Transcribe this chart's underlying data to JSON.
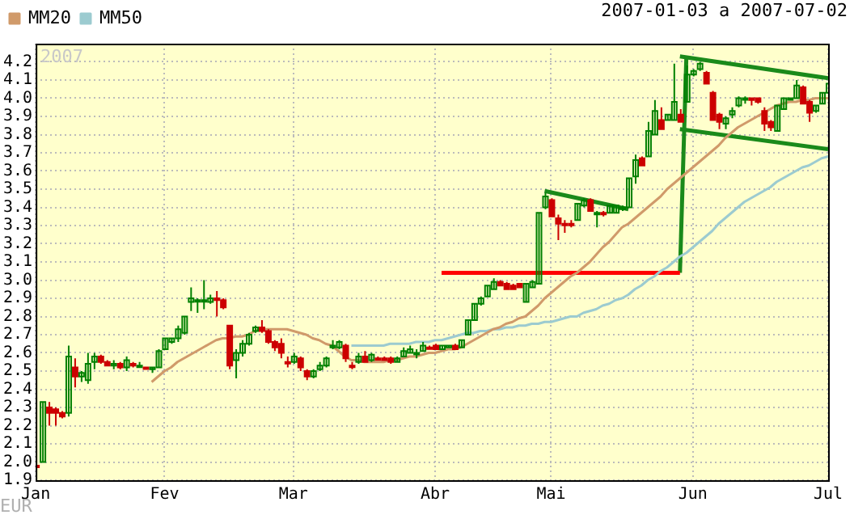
{
  "chart_data": {
    "type": "candlestick",
    "subtitle": "2007-01-03 a 2007-07-02",
    "ylabel": "EUR",
    "annotations": [
      "2007"
    ],
    "categories": [
      "Jan",
      null,
      null,
      null,
      null,
      null,
      null,
      null,
      null,
      null,
      null,
      null,
      null,
      null,
      null,
      null,
      null,
      null,
      null,
      null,
      "Fev",
      null,
      null,
      null,
      null,
      null,
      null,
      null,
      null,
      null,
      null,
      null,
      null,
      null,
      null,
      null,
      null,
      null,
      null,
      null,
      "Mar",
      null,
      null,
      null,
      null,
      null,
      null,
      null,
      null,
      null,
      null,
      null,
      null,
      null,
      null,
      null,
      null,
      null,
      null,
      null,
      null,
      null,
      "Abr",
      null,
      null,
      null,
      null,
      null,
      null,
      null,
      null,
      null,
      null,
      null,
      null,
      null,
      null,
      null,
      null,
      null,
      "Mai",
      null,
      null,
      null,
      null,
      null,
      null,
      null,
      null,
      null,
      null,
      null,
      null,
      null,
      null,
      null,
      null,
      null,
      null,
      null,
      null,
      null,
      "Jun",
      null,
      null,
      null,
      null,
      null,
      null,
      null,
      null,
      null,
      null,
      null,
      null,
      null,
      null,
      null,
      null,
      null,
      null,
      null,
      null,
      "Jul"
    ],
    "ohlc": [
      [
        1.98,
        1.98,
        1.98,
        1.98
      ],
      [
        2.0,
        2.33,
        2.0,
        2.33
      ],
      [
        2.3,
        2.33,
        2.2,
        2.27
      ],
      [
        2.29,
        2.3,
        2.2,
        2.27
      ],
      [
        2.27,
        2.28,
        2.24,
        2.25
      ],
      [
        2.27,
        2.64,
        2.25,
        2.58
      ],
      [
        2.52,
        2.57,
        2.41,
        2.47
      ],
      [
        2.47,
        2.5,
        2.44,
        2.49
      ],
      [
        2.45,
        2.6,
        2.43,
        2.54
      ],
      [
        2.55,
        2.6,
        2.51,
        2.58
      ],
      [
        2.58,
        2.59,
        2.54,
        2.55
      ],
      [
        2.55,
        2.56,
        2.53,
        2.53
      ],
      [
        2.53,
        2.56,
        2.51,
        2.54
      ],
      [
        2.54,
        2.55,
        2.51,
        2.52
      ],
      [
        2.52,
        2.58,
        2.5,
        2.56
      ],
      [
        2.54,
        2.55,
        2.52,
        2.53
      ],
      [
        2.53,
        2.55,
        2.52,
        2.53
      ],
      [
        2.52,
        2.52,
        2.52,
        2.52
      ],
      [
        2.51,
        2.52,
        2.49,
        2.52
      ],
      [
        2.52,
        2.62,
        2.52,
        2.61
      ],
      [
        2.62,
        2.68,
        2.62,
        2.68
      ],
      [
        2.66,
        2.68,
        2.65,
        2.68
      ],
      [
        2.68,
        2.75,
        2.66,
        2.73
      ],
      [
        2.71,
        2.8,
        2.7,
        2.8
      ],
      [
        2.88,
        2.96,
        2.83,
        2.9
      ],
      [
        2.89,
        2.9,
        2.82,
        2.89
      ],
      [
        2.89,
        3.0,
        2.84,
        2.89
      ],
      [
        2.88,
        2.92,
        2.87,
        2.9
      ],
      [
        2.9,
        2.94,
        2.8,
        2.89
      ],
      [
        2.89,
        2.9,
        2.84,
        2.85
      ],
      [
        2.75,
        2.75,
        2.51,
        2.53
      ],
      [
        2.56,
        2.62,
        2.46,
        2.6
      ],
      [
        2.6,
        2.67,
        2.58,
        2.65
      ],
      [
        2.65,
        2.71,
        2.64,
        2.7
      ],
      [
        2.72,
        2.75,
        2.71,
        2.74
      ],
      [
        2.74,
        2.78,
        2.71,
        2.72
      ],
      [
        2.72,
        2.73,
        2.65,
        2.66
      ],
      [
        2.66,
        2.67,
        2.61,
        2.63
      ],
      [
        2.65,
        2.68,
        2.57,
        2.6
      ],
      [
        2.55,
        2.58,
        2.52,
        2.55
      ],
      [
        2.55,
        2.6,
        2.54,
        2.58
      ],
      [
        2.57,
        2.58,
        2.5,
        2.52
      ],
      [
        2.5,
        2.51,
        2.45,
        2.47
      ],
      [
        2.47,
        2.51,
        2.46,
        2.5
      ],
      [
        2.51,
        2.55,
        2.5,
        2.53
      ],
      [
        2.53,
        2.58,
        2.52,
        2.57
      ],
      [
        2.63,
        2.67,
        2.62,
        2.64
      ],
      [
        2.63,
        2.67,
        2.62,
        2.66
      ],
      [
        2.64,
        2.65,
        2.55,
        2.57
      ],
      [
        2.53,
        2.55,
        2.51,
        2.53
      ],
      [
        2.55,
        2.6,
        2.54,
        2.58
      ],
      [
        2.58,
        2.61,
        2.55,
        2.55
      ],
      [
        2.56,
        2.6,
        2.55,
        2.59
      ],
      [
        2.57,
        2.58,
        2.56,
        2.57
      ],
      [
        2.57,
        2.58,
        2.56,
        2.56
      ],
      [
        2.57,
        2.58,
        2.54,
        2.55
      ],
      [
        2.55,
        2.58,
        2.55,
        2.57
      ],
      [
        2.58,
        2.63,
        2.58,
        2.61
      ],
      [
        2.6,
        2.64,
        2.6,
        2.62
      ],
      [
        2.6,
        2.62,
        2.57,
        2.6
      ],
      [
        2.61,
        2.66,
        2.61,
        2.64
      ],
      [
        2.63,
        2.64,
        2.62,
        2.63
      ],
      [
        2.64,
        2.65,
        2.62,
        2.62
      ],
      [
        2.62,
        2.64,
        2.62,
        2.64
      ],
      [
        2.63,
        2.64,
        2.63,
        2.64
      ],
      [
        2.64,
        2.65,
        2.62,
        2.62
      ],
      [
        2.63,
        2.67,
        2.63,
        2.67
      ],
      [
        2.7,
        2.78,
        2.7,
        2.78
      ],
      [
        2.78,
        2.87,
        2.78,
        2.87
      ],
      [
        2.87,
        2.91,
        2.86,
        2.9
      ],
      [
        2.91,
        2.97,
        2.91,
        2.97
      ],
      [
        2.95,
        3.01,
        2.95,
        2.99
      ],
      [
        2.99,
        3.0,
        2.97,
        2.97
      ],
      [
        2.98,
        2.99,
        2.95,
        2.95
      ],
      [
        2.97,
        2.98,
        2.95,
        2.95
      ],
      [
        2.98,
        2.98,
        2.96,
        2.96
      ],
      [
        2.88,
        2.98,
        2.88,
        2.98
      ],
      [
        2.96,
        3.0,
        2.96,
        2.99
      ],
      [
        2.98,
        3.37,
        2.98,
        3.37
      ],
      [
        3.4,
        3.48,
        3.39,
        3.46
      ],
      [
        3.44,
        3.45,
        3.35,
        3.35
      ],
      [
        3.34,
        3.36,
        3.22,
        3.31
      ],
      [
        3.31,
        3.33,
        3.26,
        3.31
      ],
      [
        3.31,
        3.33,
        3.29,
        3.31
      ],
      [
        3.33,
        3.42,
        3.33,
        3.42
      ],
      [
        3.41,
        3.45,
        3.4,
        3.44
      ],
      [
        3.44,
        3.45,
        3.38,
        3.38
      ],
      [
        3.37,
        3.38,
        3.29,
        3.37
      ],
      [
        3.37,
        3.38,
        3.35,
        3.37
      ],
      [
        3.37,
        3.41,
        3.37,
        3.41
      ],
      [
        3.37,
        3.41,
        3.37,
        3.41
      ],
      [
        3.39,
        3.41,
        3.38,
        3.4
      ],
      [
        3.4,
        3.56,
        3.4,
        3.56
      ],
      [
        3.57,
        3.69,
        3.53,
        3.66
      ],
      [
        3.67,
        3.68,
        3.63,
        3.63
      ],
      [
        3.68,
        3.87,
        3.68,
        3.82
      ],
      [
        3.8,
        3.99,
        3.8,
        3.93
      ],
      [
        3.88,
        3.95,
        3.83,
        3.83
      ],
      [
        3.88,
        3.91,
        3.88,
        3.91
      ],
      [
        3.88,
        4.19,
        3.88,
        3.98
      ],
      [
        3.91,
        3.94,
        3.87,
        3.87
      ],
      [
        3.98,
        4.18,
        3.98,
        4.13
      ],
      [
        4.13,
        4.16,
        4.12,
        4.15
      ],
      [
        4.16,
        4.2,
        4.15,
        4.19
      ],
      [
        4.14,
        4.15,
        4.08,
        4.08
      ],
      [
        4.03,
        4.04,
        3.88,
        3.88
      ],
      [
        3.91,
        3.92,
        3.83,
        3.87
      ],
      [
        3.86,
        3.9,
        3.83,
        3.89
      ],
      [
        3.91,
        3.95,
        3.89,
        3.93
      ],
      [
        3.96,
        4.01,
        3.95,
        4.0
      ],
      [
        4.0,
        4.01,
        3.97,
        4.0
      ],
      [
        4.0,
        4.0,
        3.96,
        3.99
      ],
      [
        4.0,
        4.0,
        3.97,
        3.98
      ],
      [
        3.93,
        3.95,
        3.82,
        3.86
      ],
      [
        3.87,
        3.88,
        3.82,
        3.84
      ],
      [
        3.82,
        3.96,
        3.82,
        3.96
      ],
      [
        3.94,
        4.0,
        3.94,
        4.0
      ],
      [
        4.0,
        4.0,
        3.99,
        4.0
      ],
      [
        4.0,
        4.1,
        4.0,
        4.07
      ],
      [
        4.06,
        4.07,
        3.97,
        3.97
      ],
      [
        3.98,
        3.99,
        3.87,
        3.92
      ],
      [
        3.93,
        3.96,
        3.92,
        3.96
      ],
      [
        3.97,
        4.03,
        3.97,
        4.03
      ],
      [
        4.03,
        4.1,
        4.02,
        4.08
      ]
    ],
    "colors": [
      "#cc0000",
      "#008000",
      "#cc0000",
      "#cc0000",
      "#cc0000",
      "#008000",
      "#cc0000",
      "#008000",
      "#008000",
      "#008000",
      "#cc0000",
      "#cc0000",
      "#008000",
      "#cc0000",
      "#008000",
      "#cc0000",
      "#008000",
      "#cc0000",
      "#008000",
      "#008000",
      "#008000",
      "#008000",
      "#008000",
      "#008000",
      "#008000",
      "#008000",
      "#008000",
      "#008000",
      "#cc0000",
      "#cc0000",
      "#cc0000",
      "#008000",
      "#008000",
      "#008000",
      "#008000",
      "#cc0000",
      "#cc0000",
      "#cc0000",
      "#cc0000",
      "#cc0000",
      "#008000",
      "#cc0000",
      "#cc0000",
      "#008000",
      "#008000",
      "#008000",
      "#008000",
      "#008000",
      "#cc0000",
      "#cc0000",
      "#008000",
      "#cc0000",
      "#008000",
      "#cc0000",
      "#cc0000",
      "#cc0000",
      "#008000",
      "#008000",
      "#008000",
      "#008000",
      "#008000",
      "#cc0000",
      "#cc0000",
      "#008000",
      "#008000",
      "#cc0000",
      "#008000",
      "#008000",
      "#008000",
      "#008000",
      "#008000",
      "#008000",
      "#cc0000",
      "#cc0000",
      "#cc0000",
      "#cc0000",
      "#008000",
      "#008000",
      "#008000",
      "#008000",
      "#cc0000",
      "#cc0000",
      "#cc0000",
      "#cc0000",
      "#008000",
      "#008000",
      "#cc0000",
      "#008000",
      "#cc0000",
      "#008000",
      "#008000",
      "#008000",
      "#008000",
      "#008000",
      "#cc0000",
      "#008000",
      "#008000",
      "#cc0000",
      "#008000",
      "#008000",
      "#cc0000",
      "#008000",
      "#008000",
      "#008000",
      "#cc0000",
      "#cc0000",
      "#cc0000",
      "#008000",
      "#008000",
      "#008000",
      "#008000",
      "#cc0000",
      "#cc0000",
      "#cc0000",
      "#cc0000",
      "#008000",
      "#008000",
      "#008000",
      "#008000",
      "#cc0000",
      "#cc0000",
      "#008000",
      "#008000",
      "#008000"
    ],
    "series": [
      {
        "type": "line",
        "name": "MM20",
        "color": "#d09a6a",
        "values": [
          null,
          null,
          null,
          null,
          null,
          null,
          null,
          null,
          null,
          null,
          null,
          null,
          null,
          null,
          null,
          null,
          null,
          null,
          2.44,
          2.47,
          2.5,
          2.52,
          2.55,
          2.57,
          2.59,
          2.61,
          2.63,
          2.65,
          2.67,
          2.68,
          2.68,
          2.69,
          2.69,
          2.7,
          2.72,
          2.73,
          2.73,
          2.73,
          2.73,
          2.73,
          2.72,
          2.71,
          2.7,
          2.68,
          2.67,
          2.65,
          2.64,
          2.61,
          2.58,
          2.56,
          2.56,
          2.55,
          2.55,
          2.55,
          2.55,
          2.56,
          2.56,
          2.57,
          2.58,
          2.58,
          2.59,
          2.6,
          2.6,
          2.61,
          2.62,
          2.62,
          2.63,
          2.65,
          2.67,
          2.69,
          2.71,
          2.73,
          2.74,
          2.76,
          2.77,
          2.79,
          2.8,
          2.83,
          2.86,
          2.9,
          2.93,
          2.96,
          2.99,
          3.02,
          3.04,
          3.07,
          3.1,
          3.14,
          3.18,
          3.21,
          3.25,
          3.29,
          3.31,
          3.34,
          3.37,
          3.4,
          3.43,
          3.46,
          3.5,
          3.53,
          3.56,
          3.59,
          3.62,
          3.65,
          3.68,
          3.71,
          3.74,
          3.78,
          3.81,
          3.84,
          3.86,
          3.88,
          3.9,
          3.92,
          3.94,
          3.96,
          3.97,
          3.98,
          3.98,
          3.99,
          3.99,
          4.0,
          4.0,
          4.0
        ]
      },
      {
        "type": "line",
        "name": "MM50",
        "color": "#9ccbd0",
        "values": [
          null,
          null,
          null,
          null,
          null,
          null,
          null,
          null,
          null,
          null,
          null,
          null,
          null,
          null,
          null,
          null,
          null,
          null,
          null,
          null,
          null,
          null,
          null,
          null,
          null,
          null,
          null,
          null,
          null,
          null,
          null,
          null,
          null,
          null,
          null,
          null,
          null,
          null,
          null,
          null,
          null,
          null,
          null,
          null,
          null,
          null,
          null,
          null,
          null,
          2.64,
          2.64,
          2.64,
          2.64,
          2.64,
          2.64,
          2.65,
          2.65,
          2.65,
          2.65,
          2.66,
          2.66,
          2.66,
          2.67,
          2.67,
          2.68,
          2.69,
          2.7,
          2.71,
          2.71,
          2.72,
          2.72,
          2.73,
          2.73,
          2.74,
          2.74,
          2.75,
          2.75,
          2.76,
          2.76,
          2.77,
          2.77,
          2.78,
          2.79,
          2.8,
          2.8,
          2.82,
          2.83,
          2.84,
          2.86,
          2.87,
          2.89,
          2.9,
          2.92,
          2.95,
          2.97,
          3.0,
          3.02,
          3.05,
          3.07,
          3.1,
          3.13,
          3.15,
          3.18,
          3.21,
          3.24,
          3.27,
          3.31,
          3.34,
          3.37,
          3.4,
          3.43,
          3.45,
          3.47,
          3.49,
          3.51,
          3.54,
          3.56,
          3.58,
          3.6,
          3.62,
          3.63,
          3.65,
          3.67,
          3.68
        ]
      },
      {
        "type": "line",
        "color": "#ff0000",
        "values": [
          null,
          null,
          null,
          null,
          null,
          null,
          null,
          null,
          null,
          null,
          null,
          null,
          null,
          null,
          null,
          null,
          null,
          null,
          null,
          null,
          null,
          null,
          null,
          null,
          null,
          null,
          null,
          null,
          null,
          null,
          null,
          null,
          null,
          null,
          null,
          null,
          null,
          null,
          null,
          null,
          null,
          null,
          null,
          null,
          null,
          null,
          null,
          null,
          null,
          null,
          null,
          null,
          null,
          null,
          null,
          null,
          null,
          null,
          null,
          null,
          null,
          null,
          null,
          3.04,
          null,
          null,
          null,
          null,
          null,
          null,
          null,
          null,
          null,
          null,
          null,
          null,
          null,
          null,
          null,
          null,
          null,
          null,
          null,
          null,
          null,
          null,
          null,
          null,
          null,
          null,
          null,
          null,
          null,
          null,
          null,
          null,
          null,
          null,
          null,
          null,
          3.04,
          null,
          null,
          null,
          null,
          null,
          null,
          null,
          null,
          null,
          null,
          null,
          null,
          null,
          null,
          null,
          null,
          null,
          null,
          null,
          null,
          null,
          null,
          null
        ]
      },
      {
        "type": "line",
        "color": "#1a8a1a",
        "values": [
          null,
          null,
          null,
          null,
          null,
          null,
          null,
          null,
          null,
          null,
          null,
          null,
          null,
          null,
          null,
          null,
          null,
          null,
          null,
          null,
          null,
          null,
          null,
          null,
          null,
          null,
          null,
          null,
          null,
          null,
          null,
          null,
          null,
          null,
          null,
          null,
          null,
          null,
          null,
          null,
          null,
          null,
          null,
          null,
          null,
          null,
          null,
          null,
          null,
          null,
          null,
          null,
          null,
          null,
          null,
          null,
          null,
          null,
          null,
          null,
          null,
          null,
          null,
          null,
          null,
          null,
          null,
          null,
          null,
          null,
          null,
          null,
          null,
          null,
          null,
          null,
          null,
          null,
          null,
          null,
          null,
          null,
          null,
          null,
          null,
          null,
          null,
          null,
          null,
          null,
          null,
          null,
          null,
          null,
          null,
          null,
          null,
          null,
          null,
          null,
          3.04,
          4.23,
          null,
          null,
          null,
          null,
          null,
          null,
          null,
          null,
          null,
          null,
          null,
          null,
          null,
          null,
          null,
          null,
          null,
          null,
          null,
          null,
          null,
          null
        ]
      },
      {
        "type": "line",
        "color": "#1a8a1a",
        "values": [
          null,
          null,
          null,
          null,
          null,
          null,
          null,
          null,
          null,
          null,
          null,
          null,
          null,
          null,
          null,
          null,
          null,
          null,
          null,
          null,
          null,
          null,
          null,
          null,
          null,
          null,
          null,
          null,
          null,
          null,
          null,
          null,
          null,
          null,
          null,
          null,
          null,
          null,
          null,
          null,
          null,
          null,
          null,
          null,
          null,
          null,
          null,
          null,
          null,
          null,
          null,
          null,
          null,
          null,
          null,
          null,
          null,
          null,
          null,
          null,
          null,
          null,
          null,
          null,
          null,
          null,
          null,
          null,
          null,
          null,
          null,
          null,
          null,
          null,
          null,
          null,
          null,
          null,
          null,
          null,
          null,
          null,
          null,
          null,
          null,
          null,
          null,
          null,
          null,
          null,
          null,
          null,
          null,
          null,
          null,
          null,
          null,
          null,
          null,
          null,
          4.23,
          null,
          null,
          null,
          null,
          null,
          null,
          null,
          null,
          null,
          null,
          null,
          null,
          null,
          null,
          null,
          null,
          null,
          null,
          null,
          null,
          null,
          null,
          4.11
        ]
      },
      {
        "type": "line",
        "color": "#1a8a1a",
        "values": [
          null,
          null,
          null,
          null,
          null,
          null,
          null,
          null,
          null,
          null,
          null,
          null,
          null,
          null,
          null,
          null,
          null,
          null,
          null,
          null,
          null,
          null,
          null,
          null,
          null,
          null,
          null,
          null,
          null,
          null,
          null,
          null,
          null,
          null,
          null,
          null,
          null,
          null,
          null,
          null,
          null,
          null,
          null,
          null,
          null,
          null,
          null,
          null,
          null,
          null,
          null,
          null,
          null,
          null,
          null,
          null,
          null,
          null,
          null,
          null,
          null,
          null,
          null,
          null,
          null,
          null,
          null,
          null,
          null,
          null,
          null,
          null,
          null,
          null,
          null,
          null,
          null,
          null,
          null,
          null,
          null,
          null,
          null,
          null,
          null,
          null,
          null,
          null,
          null,
          null,
          null,
          null,
          null,
          null,
          null,
          null,
          null,
          null,
          null,
          null,
          3.83,
          null,
          null,
          null,
          null,
          null,
          null,
          null,
          null,
          null,
          null,
          null,
          null,
          null,
          null,
          null,
          null,
          null,
          null,
          null,
          null,
          null,
          null,
          3.72
        ]
      },
      {
        "type": "line",
        "color": "#1a8a1a",
        "values": [
          null,
          null,
          null,
          null,
          null,
          null,
          null,
          null,
          null,
          null,
          null,
          null,
          null,
          null,
          null,
          null,
          null,
          null,
          null,
          null,
          null,
          null,
          null,
          null,
          null,
          null,
          null,
          null,
          null,
          null,
          null,
          null,
          null,
          null,
          null,
          null,
          null,
          null,
          null,
          null,
          null,
          null,
          null,
          null,
          null,
          null,
          null,
          null,
          null,
          null,
          null,
          null,
          null,
          null,
          null,
          null,
          null,
          null,
          null,
          null,
          null,
          null,
          null,
          null,
          null,
          null,
          null,
          null,
          null,
          null,
          null,
          null,
          null,
          null,
          null,
          null,
          null,
          null,
          null,
          3.49,
          null,
          null,
          null,
          null,
          null,
          null,
          null,
          null,
          null,
          null,
          null,
          null,
          3.39,
          null,
          null,
          null,
          null,
          null,
          null,
          null,
          null,
          null,
          null,
          null,
          null,
          null,
          null,
          null,
          null,
          null,
          null,
          null,
          null,
          null,
          null,
          null,
          null,
          null,
          null,
          null,
          null,
          null,
          null,
          null
        ]
      }
    ],
    "ylim": [
      1.9,
      4.3
    ],
    "yticks": [
      1.9,
      {
        "value": 2,
        "label": "2.0"
      },
      2.1,
      2.2,
      2.3,
      2.4,
      2.5,
      2.6,
      2.7,
      2.8,
      2.9,
      {
        "value": 3,
        "label": "3.0"
      },
      3.1,
      3.2,
      3.3,
      3.4,
      3.5,
      3.6,
      3.7,
      3.8,
      3.9,
      {
        "value": 4,
        "label": "4.0"
      },
      4.1,
      4.2
    ],
    "grid": true,
    "legend": "top left"
  }
}
